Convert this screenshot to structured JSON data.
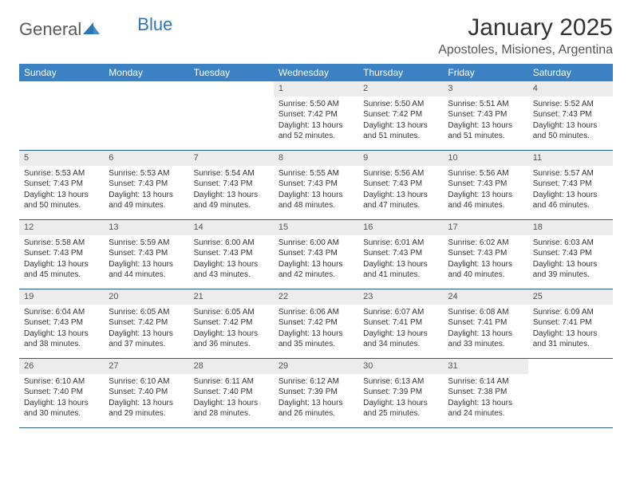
{
  "brand": {
    "part1": "General",
    "part2": "Blue"
  },
  "title": "January 2025",
  "location": "Apostoles, Misiones, Argentina",
  "colors": {
    "header_bg": "#3b82c4",
    "header_text": "#ffffff",
    "daynum_bg": "#ececec",
    "week_border": "#2a5a8a",
    "brand_blue": "#2a74b8",
    "text": "#333333"
  },
  "day_names": [
    "Sunday",
    "Monday",
    "Tuesday",
    "Wednesday",
    "Thursday",
    "Friday",
    "Saturday"
  ],
  "weeks": [
    [
      null,
      null,
      null,
      {
        "n": "1",
        "sr": "5:50 AM",
        "ss": "7:42 PM",
        "dl": "13 hours and 52 minutes."
      },
      {
        "n": "2",
        "sr": "5:50 AM",
        "ss": "7:42 PM",
        "dl": "13 hours and 51 minutes."
      },
      {
        "n": "3",
        "sr": "5:51 AM",
        "ss": "7:43 PM",
        "dl": "13 hours and 51 minutes."
      },
      {
        "n": "4",
        "sr": "5:52 AM",
        "ss": "7:43 PM",
        "dl": "13 hours and 50 minutes."
      }
    ],
    [
      {
        "n": "5",
        "sr": "5:53 AM",
        "ss": "7:43 PM",
        "dl": "13 hours and 50 minutes."
      },
      {
        "n": "6",
        "sr": "5:53 AM",
        "ss": "7:43 PM",
        "dl": "13 hours and 49 minutes."
      },
      {
        "n": "7",
        "sr": "5:54 AM",
        "ss": "7:43 PM",
        "dl": "13 hours and 49 minutes."
      },
      {
        "n": "8",
        "sr": "5:55 AM",
        "ss": "7:43 PM",
        "dl": "13 hours and 48 minutes."
      },
      {
        "n": "9",
        "sr": "5:56 AM",
        "ss": "7:43 PM",
        "dl": "13 hours and 47 minutes."
      },
      {
        "n": "10",
        "sr": "5:56 AM",
        "ss": "7:43 PM",
        "dl": "13 hours and 46 minutes."
      },
      {
        "n": "11",
        "sr": "5:57 AM",
        "ss": "7:43 PM",
        "dl": "13 hours and 46 minutes."
      }
    ],
    [
      {
        "n": "12",
        "sr": "5:58 AM",
        "ss": "7:43 PM",
        "dl": "13 hours and 45 minutes."
      },
      {
        "n": "13",
        "sr": "5:59 AM",
        "ss": "7:43 PM",
        "dl": "13 hours and 44 minutes."
      },
      {
        "n": "14",
        "sr": "6:00 AM",
        "ss": "7:43 PM",
        "dl": "13 hours and 43 minutes."
      },
      {
        "n": "15",
        "sr": "6:00 AM",
        "ss": "7:43 PM",
        "dl": "13 hours and 42 minutes."
      },
      {
        "n": "16",
        "sr": "6:01 AM",
        "ss": "7:43 PM",
        "dl": "13 hours and 41 minutes."
      },
      {
        "n": "17",
        "sr": "6:02 AM",
        "ss": "7:43 PM",
        "dl": "13 hours and 40 minutes."
      },
      {
        "n": "18",
        "sr": "6:03 AM",
        "ss": "7:43 PM",
        "dl": "13 hours and 39 minutes."
      }
    ],
    [
      {
        "n": "19",
        "sr": "6:04 AM",
        "ss": "7:43 PM",
        "dl": "13 hours and 38 minutes."
      },
      {
        "n": "20",
        "sr": "6:05 AM",
        "ss": "7:42 PM",
        "dl": "13 hours and 37 minutes."
      },
      {
        "n": "21",
        "sr": "6:05 AM",
        "ss": "7:42 PM",
        "dl": "13 hours and 36 minutes."
      },
      {
        "n": "22",
        "sr": "6:06 AM",
        "ss": "7:42 PM",
        "dl": "13 hours and 35 minutes."
      },
      {
        "n": "23",
        "sr": "6:07 AM",
        "ss": "7:41 PM",
        "dl": "13 hours and 34 minutes."
      },
      {
        "n": "24",
        "sr": "6:08 AM",
        "ss": "7:41 PM",
        "dl": "13 hours and 33 minutes."
      },
      {
        "n": "25",
        "sr": "6:09 AM",
        "ss": "7:41 PM",
        "dl": "13 hours and 31 minutes."
      }
    ],
    [
      {
        "n": "26",
        "sr": "6:10 AM",
        "ss": "7:40 PM",
        "dl": "13 hours and 30 minutes."
      },
      {
        "n": "27",
        "sr": "6:10 AM",
        "ss": "7:40 PM",
        "dl": "13 hours and 29 minutes."
      },
      {
        "n": "28",
        "sr": "6:11 AM",
        "ss": "7:40 PM",
        "dl": "13 hours and 28 minutes."
      },
      {
        "n": "29",
        "sr": "6:12 AM",
        "ss": "7:39 PM",
        "dl": "13 hours and 26 minutes."
      },
      {
        "n": "30",
        "sr": "6:13 AM",
        "ss": "7:39 PM",
        "dl": "13 hours and 25 minutes."
      },
      {
        "n": "31",
        "sr": "6:14 AM",
        "ss": "7:38 PM",
        "dl": "13 hours and 24 minutes."
      },
      null
    ]
  ],
  "labels": {
    "sunrise": "Sunrise:",
    "sunset": "Sunset:",
    "daylight": "Daylight:"
  }
}
